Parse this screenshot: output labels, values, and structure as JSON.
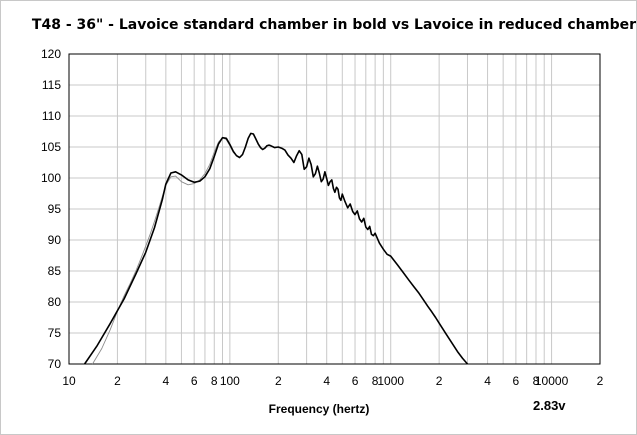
{
  "chart_data": {
    "type": "line",
    "title": "T48 - 36\" - Lavoice standard chamber in bold vs Lavoice in reduced chamber",
    "xlabel": "Frequency (hertz)",
    "ylabel": "",
    "annotation": "2.83v",
    "x_scale": "log",
    "xlim": [
      10,
      20000
    ],
    "ylim": [
      70,
      120
    ],
    "grid": true,
    "y_ticks": [
      120,
      115,
      110,
      105,
      100,
      95,
      90,
      85,
      80,
      75,
      70
    ],
    "x_tick_labels": [
      {
        "value": 10,
        "label": "10"
      },
      {
        "value": 20,
        "label": "2"
      },
      {
        "value": 40,
        "label": "4"
      },
      {
        "value": 60,
        "label": "6"
      },
      {
        "value": 80,
        "label": "8"
      },
      {
        "value": 100,
        "label": "100"
      },
      {
        "value": 200,
        "label": "2"
      },
      {
        "value": 400,
        "label": "4"
      },
      {
        "value": 600,
        "label": "6"
      },
      {
        "value": 800,
        "label": "8"
      },
      {
        "value": 1000,
        "label": "1000"
      },
      {
        "value": 2000,
        "label": "2"
      },
      {
        "value": 4000,
        "label": "4"
      },
      {
        "value": 6000,
        "label": "6"
      },
      {
        "value": 8000,
        "label": "8"
      },
      {
        "value": 10000,
        "label": "10000"
      },
      {
        "value": 20000,
        "label": "2"
      }
    ],
    "colors": {
      "grid": "#c8c8c8",
      "axis": "#000000",
      "bold_series": "#000000",
      "thin_series": "#8c8c8c"
    },
    "series": [
      {
        "style": "bold",
        "x": [
          12.5,
          15,
          18,
          22,
          26,
          30,
          34,
          38,
          40,
          43,
          46,
          50,
          55,
          60,
          65,
          70,
          75,
          80,
          85,
          90,
          95,
          100,
          105,
          110,
          115,
          120,
          125,
          130,
          135,
          140,
          145,
          150,
          155,
          160,
          165,
          170,
          175,
          180,
          190,
          200,
          210,
          220,
          230,
          240,
          250,
          260,
          270,
          280,
          290,
          300,
          310,
          320,
          330,
          340,
          350,
          360,
          370,
          380,
          390,
          400,
          410,
          420,
          430,
          440,
          450,
          460,
          470,
          480,
          490,
          500,
          520,
          540,
          560,
          580,
          600,
          620,
          640,
          660,
          680,
          700,
          720,
          740,
          760,
          780,
          800,
          850,
          900,
          950,
          1000,
          1100,
          1200,
          1300,
          1400,
          1500,
          1600,
          1700,
          1800,
          1900,
          2000,
          2200,
          2400,
          2600,
          2800,
          3000
        ],
        "y": [
          70,
          73,
          76.5,
          80.5,
          84.5,
          88,
          92,
          96.5,
          99,
          100.8,
          101,
          100.5,
          99.7,
          99.3,
          99.5,
          100.2,
          101.5,
          103.5,
          105.5,
          106.5,
          106.4,
          105.4,
          104.3,
          103.6,
          103.3,
          103.8,
          105,
          106.4,
          107.2,
          107.1,
          106.3,
          105.5,
          104.9,
          104.6,
          104.8,
          105.2,
          105.3,
          105.2,
          104.9,
          105,
          104.8,
          104.5,
          103.7,
          103.2,
          102.5,
          103.6,
          104.4,
          103.8,
          101.4,
          101.8,
          103.2,
          102.2,
          100.2,
          100.7,
          101.9,
          100.8,
          99.4,
          99.8,
          101,
          99.9,
          98.8,
          99.4,
          99.7,
          98.3,
          97.7,
          98.5,
          98.2,
          96.8,
          96.4,
          97.4,
          96.2,
          95.2,
          95.8,
          94.6,
          94.1,
          94.7,
          93.4,
          92.9,
          93.5,
          92.1,
          91.7,
          92.2,
          90.9,
          90.7,
          91.1,
          89.5,
          88.5,
          87.7,
          87.4,
          86,
          84.7,
          83.5,
          82.4,
          81.4,
          80.3,
          79.3,
          78.4,
          77.5,
          76.6,
          74.9,
          73.4,
          72,
          70.9,
          69.6
        ]
      },
      {
        "style": "thin",
        "x": [
          14,
          16,
          18,
          20,
          22,
          24,
          26,
          28,
          30,
          32,
          34,
          36,
          38,
          40,
          43,
          46,
          50,
          55,
          60,
          65,
          70,
          75,
          80,
          85,
          90,
          95,
          100,
          105,
          110
        ],
        "y": [
          70,
          72.5,
          75.5,
          78.5,
          81,
          83,
          85,
          87,
          89,
          91,
          93,
          95,
          97,
          98.8,
          100.2,
          100.3,
          99.4,
          98.9,
          99.1,
          99.7,
          100.7,
          102.2,
          104.2,
          105.8,
          106.5,
          106.2,
          105.2,
          104.1,
          103.6
        ]
      }
    ]
  }
}
